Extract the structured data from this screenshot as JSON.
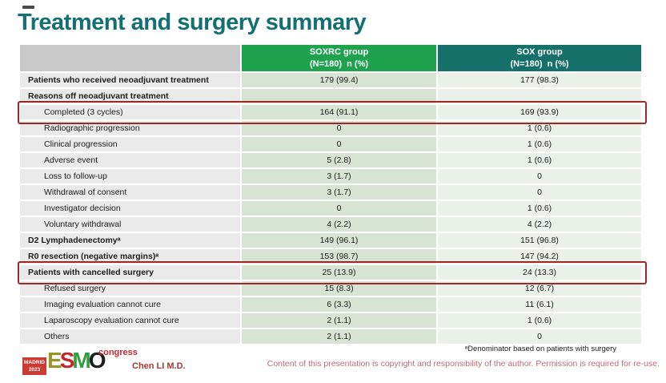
{
  "title": "Treatment and surgery summary",
  "table": {
    "header": {
      "soxrc_line1": "SOXRC group",
      "soxrc_line2": "(N=180)  n (%)",
      "sox_line1": "SOX group",
      "sox_line2": "(N=180)  n (%)"
    },
    "rows": [
      {
        "label": "Patients who received neoadjuvant treatment",
        "soxrc": "179 (99.4)",
        "sox": "177 (98.3)",
        "bold": true,
        "indent": false
      },
      {
        "label": "Reasons off neoadjuvant treatment",
        "soxrc": "",
        "sox": "",
        "bold": true,
        "indent": false
      },
      {
        "label": "Completed (3 cycles)",
        "soxrc": "164 (91.1)",
        "sox": "169 (93.9)",
        "bold": false,
        "indent": true
      },
      {
        "label": "Radiographic progression",
        "soxrc": "0",
        "sox": "1 (0.6)",
        "bold": false,
        "indent": true
      },
      {
        "label": "Clinical progression",
        "soxrc": "0",
        "sox": "1 (0.6)",
        "bold": false,
        "indent": true
      },
      {
        "label": "Adverse event",
        "soxrc": "5 (2.8)",
        "sox": "1 (0.6)",
        "bold": false,
        "indent": true
      },
      {
        "label": "Loss to follow-up",
        "soxrc": "3 (1.7)",
        "sox": "0",
        "bold": false,
        "indent": true
      },
      {
        "label": "Withdrawal of consent",
        "soxrc": "3 (1.7)",
        "sox": "0",
        "bold": false,
        "indent": true
      },
      {
        "label": "Investigator decision",
        "soxrc": "0",
        "sox": "1 (0.6)",
        "bold": false,
        "indent": true
      },
      {
        "label": "Voluntary withdrawal",
        "soxrc": "4 (2.2)",
        "sox": "4 (2.2)",
        "bold": false,
        "indent": true
      },
      {
        "label": "D2 Lymphadenectomyᵃ",
        "soxrc": "149 (96.1)",
        "sox": "151 (96.8)",
        "bold": true,
        "indent": false
      },
      {
        "label": "R0 resection (negative margins)ᵃ",
        "soxrc": "153 (98.7)",
        "sox": "147 (94.2)",
        "bold": true,
        "indent": false
      },
      {
        "label": "Patients with cancelled surgery",
        "soxrc": "25 (13.9)",
        "sox": "24 (13.3)",
        "bold": true,
        "indent": false
      },
      {
        "label": "Refused surgery",
        "soxrc": "15 (8.3)",
        "sox": "12 (6.7)",
        "bold": false,
        "indent": true
      },
      {
        "label": "Imaging evaluation cannot cure",
        "soxrc": "6 (3.3)",
        "sox": "11 (6.1)",
        "bold": false,
        "indent": true
      },
      {
        "label": "Laparoscopy evaluation cannot cure",
        "soxrc": "2 (1.1)",
        "sox": "1 (0.6)",
        "bold": false,
        "indent": true
      },
      {
        "label": "Others",
        "soxrc": "2 (1.1)",
        "sox": "0",
        "bold": false,
        "indent": true
      }
    ]
  },
  "footer": {
    "footnote": "ᵃDenominator based on patients with surgery",
    "author": "Chen LI M.D.",
    "copyright": "Content of this presentation is copyright and responsibility of the author. Permission is required for re-use.",
    "logo": {
      "badge_line1": "MADRID",
      "badge_line2": "2023",
      "letter_e": "E",
      "letter_s": "S",
      "letter_m": "M",
      "letter_o": "O",
      "congress": "congress"
    }
  },
  "colors": {
    "title_teal": "#136f74",
    "header_soxrc_green": "#1ea24d",
    "header_sox_teal": "#15706a",
    "highlight_border_red": "#9c2a24",
    "copyright_rose": "#c06b74"
  }
}
